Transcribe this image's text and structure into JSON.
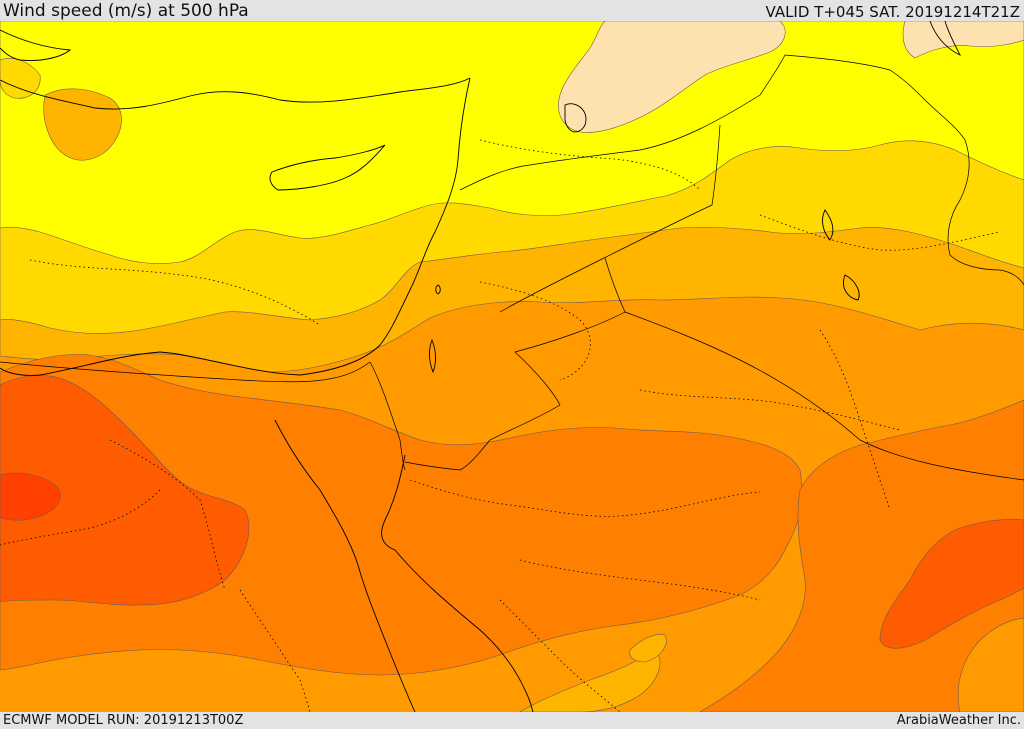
{
  "header": {
    "title": "Wind speed (m/s) at 500 hPa",
    "valid": "VALID T+045 SAT. 20191214T21Z"
  },
  "footer": {
    "model_run": "ECMWF MODEL RUN: 20191213T00Z",
    "credit": "ArabiaWeather Inc."
  },
  "map": {
    "variable": "wind speed at 500 hPa",
    "palette": {
      "lightest": "#fde2b0",
      "yellow": "#ffff00",
      "gold": "#ffd900",
      "amber": "#ffb400",
      "orange": "#ff9a00",
      "dark_orange": "#ff7f00",
      "red_orange": "#ff5b00",
      "deep": "#ff4000"
    }
  }
}
